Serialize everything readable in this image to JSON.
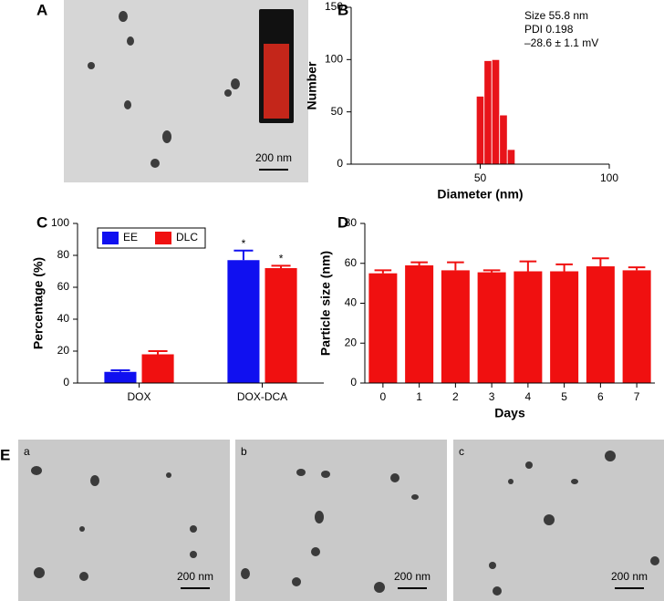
{
  "chart_data": [
    {
      "label": "B",
      "type": "histogram",
      "xlabel": "Diameter (nm)",
      "ylabel": "Number",
      "bins": [
        48.5,
        51.5,
        54.5,
        57.5,
        60.5,
        63.5
      ],
      "values": [
        65,
        99,
        100,
        47,
        14
      ],
      "color": "#e8141a",
      "xlim": [
        0,
        100
      ],
      "xticks": [
        50,
        100
      ],
      "ylim": [
        0,
        150
      ],
      "yticks": [
        0,
        50,
        100,
        150
      ],
      "annotations": [
        "Size 55.8 nm",
        "PDI 0.198",
        "–28.6 ± 1.1 mV"
      ]
    },
    {
      "label": "C",
      "type": "bar",
      "ylabel": "Percentage (%)",
      "categories": [
        "DOX",
        "DOX-DCA"
      ],
      "series": [
        {
          "name": "EE",
          "color": "#1010f0",
          "values": [
            7,
            77
          ],
          "errors": [
            1,
            6
          ],
          "annotations": [
            null,
            "*"
          ]
        },
        {
          "name": "DLC",
          "color": "#f01010",
          "values": [
            18,
            72
          ],
          "errors": [
            2,
            1.5
          ],
          "annotations": [
            null,
            "*"
          ]
        }
      ],
      "ylim": [
        0,
        100
      ],
      "yticks": [
        0,
        20,
        40,
        60,
        80,
        100
      ],
      "legend": "upper left"
    },
    {
      "label": "D",
      "type": "bar",
      "xlabel": "Days",
      "ylabel": "Particle size (nm)",
      "categories": [
        "0",
        "1",
        "2",
        "3",
        "4",
        "5",
        "6",
        "7"
      ],
      "series": [
        {
          "color": "#f01010",
          "values": [
            55,
            59,
            56.5,
            55.5,
            56,
            56,
            58.5,
            56.5
          ],
          "errors": [
            1.5,
            1.5,
            4,
            1,
            5,
            3.5,
            4,
            1.5
          ]
        }
      ],
      "ylim": [
        0,
        80
      ],
      "yticks": [
        0,
        20,
        40,
        60,
        80
      ]
    }
  ],
  "image_panels": [
    {
      "label": "A",
      "scale_bar": "200 nm"
    },
    {
      "label": "a",
      "scale_bar": "200 nm"
    },
    {
      "label": "b",
      "scale_bar": "200 nm"
    },
    {
      "label": "c",
      "scale_bar": "200 nm"
    }
  ],
  "panel_e_label": "E"
}
